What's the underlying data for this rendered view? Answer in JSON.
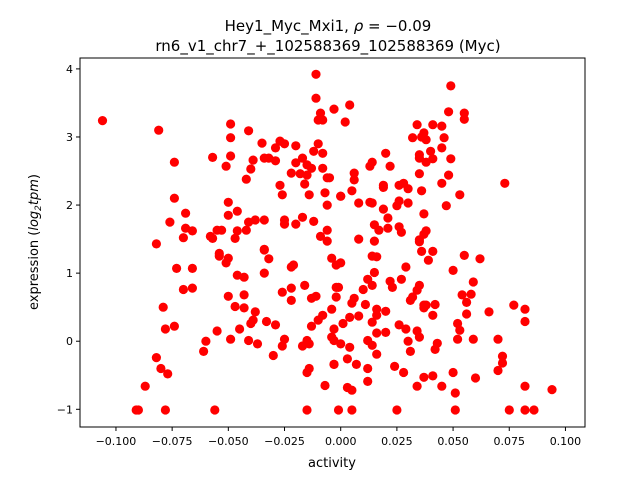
{
  "chart_data": {
    "type": "scatter",
    "title_line1_prefix": "Hey1_Myc_Mxi1, ",
    "title_rho": "ρ",
    "title_eq": " = −0.09",
    "title_line2": "rn6_v1_chr7_+_102588369_102588369 (Myc)",
    "xlabel": "activity",
    "ylabel_parts": {
      "prefix": "expression (",
      "log": "log",
      "sub": "2",
      "tpm": "tpm",
      "suffix": ")"
    },
    "xlim": [
      -0.116,
      0.1087
    ],
    "ylim": [
      -1.26,
      4.16
    ],
    "xticks": [
      -0.1,
      -0.075,
      -0.05,
      -0.025,
      0.0,
      0.025,
      0.05,
      0.075,
      0.1
    ],
    "xtick_labels": [
      "−0.100",
      "−0.075",
      "−0.050",
      "−0.025",
      "0.000",
      "0.025",
      "0.050",
      "0.075",
      "0.100"
    ],
    "yticks": [
      -1,
      0,
      1,
      2,
      3,
      4
    ],
    "ytick_labels": [
      "−1",
      "0",
      "1",
      "2",
      "3",
      "4"
    ],
    "grid": false,
    "marker_color": "#ff0000",
    "points": [
      [
        -0.106,
        3.24
      ],
      [
        -0.081,
        3.1
      ],
      [
        -0.074,
        2.63
      ],
      [
        -0.074,
        2.1
      ],
      [
        -0.076,
        1.75
      ],
      [
        -0.069,
        1.88
      ],
      [
        -0.069,
        1.66
      ],
      [
        -0.07,
        1.52
      ],
      [
        -0.066,
        1.62
      ],
      [
        -0.082,
        1.43
      ],
      [
        -0.073,
        1.07
      ],
      [
        -0.066,
        1.07
      ],
      [
        -0.07,
        0.76
      ],
      [
        -0.066,
        0.78
      ],
      [
        -0.079,
        0.5
      ],
      [
        -0.078,
        0.18
      ],
      [
        -0.074,
        0.22
      ],
      [
        -0.082,
        -0.24
      ],
      [
        -0.08,
        -0.4
      ],
      [
        -0.077,
        -0.48
      ],
      [
        -0.087,
        -0.66
      ],
      [
        -0.09,
        -1.01
      ],
      [
        -0.091,
        -1.01
      ],
      [
        -0.078,
        -1.01
      ],
      [
        -0.056,
        -1.01
      ],
      [
        -0.011,
        3.92
      ],
      [
        -0.049,
        3.19
      ],
      [
        -0.049,
        2.99
      ],
      [
        -0.041,
        3.09
      ],
      [
        -0.035,
        2.91
      ],
      [
        -0.057,
        2.7
      ],
      [
        -0.049,
        2.72
      ],
      [
        -0.051,
        2.57
      ],
      [
        -0.039,
        2.66
      ],
      [
        -0.04,
        2.53
      ],
      [
        -0.042,
        2.38
      ],
      [
        -0.034,
        2.69
      ],
      [
        -0.032,
        2.69
      ],
      [
        -0.029,
        2.65
      ],
      [
        -0.027,
        2.94
      ],
      [
        -0.025,
        2.9
      ],
      [
        -0.029,
        2.84
      ],
      [
        -0.02,
        2.87
      ],
      [
        -0.02,
        2.62
      ],
      [
        -0.017,
        2.69
      ],
      [
        -0.015,
        2.59
      ],
      [
        -0.013,
        2.54
      ],
      [
        -0.022,
        2.47
      ],
      [
        -0.018,
        2.46
      ],
      [
        -0.015,
        2.44
      ],
      [
        -0.016,
        2.31
      ],
      [
        -0.027,
        2.29
      ],
      [
        -0.026,
        2.15
      ],
      [
        -0.014,
        2.15
      ],
      [
        -0.012,
        2.79
      ],
      [
        -0.01,
        2.9
      ],
      [
        -0.008,
        2.76
      ],
      [
        -0.008,
        2.54
      ],
      [
        -0.006,
        2.4
      ],
      [
        -0.007,
        2.18
      ],
      [
        -0.006,
        2.0
      ],
      [
        0.0,
        2.13
      ],
      [
        -0.011,
        3.57
      ],
      [
        -0.009,
        3.35
      ],
      [
        -0.01,
        3.25
      ],
      [
        -0.008,
        3.25
      ],
      [
        -0.003,
        3.41
      ],
      [
        -0.05,
        2.04
      ],
      [
        -0.05,
        1.85
      ],
      [
        -0.046,
        1.91
      ],
      [
        -0.041,
        1.75
      ],
      [
        -0.038,
        1.78
      ],
      [
        -0.034,
        1.78
      ],
      [
        -0.042,
        1.63
      ],
      [
        -0.046,
        1.62
      ],
      [
        -0.047,
        1.51
      ],
      [
        -0.055,
        1.63
      ],
      [
        -0.053,
        1.63
      ],
      [
        -0.058,
        1.54
      ],
      [
        -0.057,
        1.51
      ],
      [
        -0.025,
        1.78
      ],
      [
        -0.025,
        1.72
      ],
      [
        -0.02,
        1.72
      ],
      [
        -0.017,
        1.82
      ],
      [
        -0.012,
        1.76
      ],
      [
        -0.009,
        1.54
      ],
      [
        -0.006,
        1.47
      ],
      [
        -0.006,
        1.63
      ],
      [
        -0.034,
        1.35
      ],
      [
        0.049,
        3.75
      ],
      [
        0.004,
        3.47
      ],
      [
        0.002,
        3.22
      ],
      [
        0.048,
        3.37
      ],
      [
        0.055,
        3.35
      ],
      [
        0.055,
        3.26
      ],
      [
        0.034,
        3.18
      ],
      [
        0.041,
        3.18
      ],
      [
        0.045,
        3.16
      ],
      [
        0.037,
        3.06
      ],
      [
        0.036,
        3.0
      ],
      [
        0.038,
        2.96
      ],
      [
        0.032,
        2.99
      ],
      [
        0.046,
        2.99
      ],
      [
        0.045,
        2.84
      ],
      [
        0.04,
        2.79
      ],
      [
        0.035,
        2.74
      ],
      [
        0.035,
        2.69
      ],
      [
        0.038,
        2.63
      ],
      [
        0.041,
        2.68
      ],
      [
        0.049,
        2.68
      ],
      [
        0.035,
        2.46
      ],
      [
        0.048,
        2.44
      ],
      [
        0.045,
        2.32
      ],
      [
        0.036,
        2.21
      ],
      [
        0.053,
        2.15
      ],
      [
        0.047,
        1.99
      ],
      [
        0.037,
        1.87
      ],
      [
        0.038,
        1.62
      ],
      [
        0.037,
        1.57
      ],
      [
        0.035,
        1.49
      ],
      [
        0.073,
        2.32
      ],
      [
        0.02,
        2.76
      ],
      [
        0.022,
        2.57
      ],
      [
        0.013,
        2.57
      ],
      [
        0.014,
        2.63
      ],
      [
        0.006,
        2.47
      ],
      [
        0.006,
        2.37
      ],
      [
        -0.005,
        2.4
      ],
      [
        0.005,
        2.21
      ],
      [
        0.0,
        2.13
      ],
      [
        0.008,
        2.03
      ],
      [
        0.013,
        2.04
      ],
      [
        0.014,
        2.03
      ],
      [
        0.019,
        2.29
      ],
      [
        0.019,
        2.26
      ],
      [
        0.026,
        2.29
      ],
      [
        0.028,
        2.32
      ],
      [
        0.03,
        2.24
      ],
      [
        0.026,
        2.06
      ],
      [
        0.025,
        1.99
      ],
      [
        0.03,
        2.03
      ],
      [
        0.019,
        1.94
      ],
      [
        0.021,
        1.81
      ],
      [
        0.015,
        1.71
      ],
      [
        0.017,
        1.63
      ],
      [
        0.021,
        1.66
      ],
      [
        0.026,
        1.68
      ],
      [
        0.027,
        1.6
      ],
      [
        0.008,
        1.5
      ],
      [
        0.015,
        1.47
      ],
      [
        -0.034,
        1.34
      ],
      [
        -0.032,
        1.21
      ],
      [
        -0.034,
        1.0
      ],
      [
        -0.054,
        1.29
      ],
      [
        -0.05,
        1.22
      ],
      [
        -0.054,
        1.25
      ],
      [
        -0.051,
        1.15
      ],
      [
        -0.046,
        0.97
      ],
      [
        -0.043,
        0.94
      ],
      [
        -0.022,
        1.09
      ],
      [
        -0.021,
        1.12
      ],
      [
        -0.05,
        0.66
      ],
      [
        -0.043,
        0.68
      ],
      [
        -0.047,
        0.51
      ],
      [
        -0.043,
        0.49
      ],
      [
        -0.038,
        0.43
      ],
      [
        -0.039,
        0.31
      ],
      [
        -0.04,
        0.26
      ],
      [
        -0.045,
        0.18
      ],
      [
        -0.049,
        0.03
      ],
      [
        -0.041,
        0.01
      ],
      [
        -0.037,
        -0.04
      ],
      [
        -0.033,
        0.29
      ],
      [
        -0.029,
        0.24
      ],
      [
        -0.055,
        0.15
      ],
      [
        -0.06,
        0.0
      ],
      [
        -0.061,
        -0.15
      ],
      [
        -0.03,
        -0.21
      ],
      [
        -0.025,
        0.03
      ],
      [
        -0.026,
        -0.07
      ],
      [
        -0.026,
        0.72
      ],
      [
        -0.022,
        0.78
      ],
      [
        -0.022,
        0.6
      ],
      [
        -0.016,
        0.82
      ],
      [
        -0.013,
        0.63
      ],
      [
        -0.011,
        0.66
      ],
      [
        -0.004,
        0.47
      ],
      [
        -0.008,
        0.38
      ],
      [
        -0.01,
        0.31
      ],
      [
        -0.013,
        0.22
      ],
      [
        -0.015,
        0.01
      ],
      [
        -0.017,
        -0.07
      ],
      [
        -0.014,
        -0.04
      ],
      [
        -0.015,
        -0.46
      ],
      [
        -0.014,
        -0.4
      ],
      [
        -0.007,
        -0.65
      ],
      [
        -0.003,
        -0.34
      ],
      [
        -0.002,
        0.79
      ],
      [
        -0.002,
        0.65
      ],
      [
        -0.004,
        1.22
      ],
      [
        -0.002,
        1.12
      ],
      [
        -0.004,
        0.06
      ],
      [
        -0.003,
        0.01
      ],
      [
        -0.015,
        -1.01
      ],
      [
        -0.001,
        -1.01
      ],
      [
        0.055,
        1.26
      ],
      [
        0.062,
        1.21
      ],
      [
        0.05,
        1.04
      ],
      [
        0.059,
        0.87
      ],
      [
        0.054,
        0.68
      ],
      [
        0.058,
        0.69
      ],
      [
        0.056,
        0.57
      ],
      [
        0.056,
        0.4
      ],
      [
        0.052,
        0.26
      ],
      [
        0.053,
        0.16
      ],
      [
        0.052,
        0.03
      ],
      [
        0.059,
        0.03
      ],
      [
        0.07,
        0.03
      ],
      [
        0.066,
        0.43
      ],
      [
        0.077,
        0.53
      ],
      [
        0.082,
        0.47
      ],
      [
        0.082,
        0.29
      ],
      [
        0.072,
        -0.22
      ],
      [
        0.072,
        -0.32
      ],
      [
        0.07,
        -0.43
      ],
      [
        0.05,
        -0.46
      ],
      [
        0.06,
        -0.54
      ],
      [
        0.051,
        -0.76
      ],
      [
        0.082,
        -0.66
      ],
      [
        0.094,
        -0.71
      ],
      [
        0.005,
        -1.01
      ],
      [
        0.025,
        -1.01
      ],
      [
        0.051,
        -1.01
      ],
      [
        0.075,
        -1.01
      ],
      [
        0.082,
        -1.01
      ],
      [
        0.086,
        -1.01
      ],
      [
        0.036,
        1.32
      ],
      [
        0.041,
        1.32
      ],
      [
        0.039,
        1.19
      ],
      [
        0.035,
        1.46
      ],
      [
        0.029,
        1.09
      ],
      [
        0.027,
        0.91
      ],
      [
        0.022,
        0.88
      ],
      [
        0.023,
        0.79
      ],
      [
        0.035,
        0.82
      ],
      [
        0.034,
        0.75
      ],
      [
        0.032,
        0.65
      ],
      [
        0.031,
        0.6
      ],
      [
        0.037,
        0.53
      ],
      [
        0.038,
        0.53
      ],
      [
        0.042,
        0.54
      ],
      [
        0.037,
        0.49
      ],
      [
        0.041,
        0.38
      ],
      [
        0.026,
        0.24
      ],
      [
        0.029,
        0.18
      ],
      [
        0.034,
        0.15
      ],
      [
        0.035,
        0.06
      ],
      [
        0.03,
        0.0
      ],
      [
        0.031,
        -0.15
      ],
      [
        0.043,
        -0.03
      ],
      [
        0.042,
        -0.12
      ],
      [
        0.024,
        -0.37
      ],
      [
        0.028,
        -0.46
      ],
      [
        0.037,
        -0.53
      ],
      [
        0.041,
        -0.51
      ],
      [
        0.034,
        -0.66
      ],
      [
        0.045,
        -0.66
      ],
      [
        0.014,
        1.25
      ],
      [
        0.016,
        1.24
      ],
      [
        0.0,
        1.15
      ],
      [
        0.015,
        1.01
      ],
      [
        0.012,
        0.91
      ],
      [
        0.014,
        0.82
      ],
      [
        0.01,
        0.76
      ],
      [
        0.011,
        0.54
      ],
      [
        -0.001,
        0.79
      ],
      [
        0.006,
        0.63
      ],
      [
        0.005,
        0.56
      ],
      [
        0.016,
        0.47
      ],
      [
        0.02,
        0.44
      ],
      [
        0.016,
        0.38
      ],
      [
        0.014,
        0.28
      ],
      [
        0.008,
        0.37
      ],
      [
        0.004,
        0.35
      ],
      [
        0.001,
        0.26
      ],
      [
        -0.003,
        0.18
      ],
      [
        0.0,
        -0.04
      ],
      [
        0.004,
        -0.09
      ],
      [
        0.016,
        0.12
      ],
      [
        0.02,
        0.13
      ],
      [
        0.012,
        0.01
      ],
      [
        0.014,
        -0.06
      ],
      [
        0.016,
        -0.19
      ],
      [
        0.003,
        -0.26
      ],
      [
        0.007,
        -0.34
      ],
      [
        -0.003,
        -0.34
      ],
      [
        0.012,
        -0.4
      ],
      [
        0.012,
        -0.59
      ],
      [
        0.003,
        -0.68
      ],
      [
        0.005,
        -0.72
      ]
    ]
  }
}
